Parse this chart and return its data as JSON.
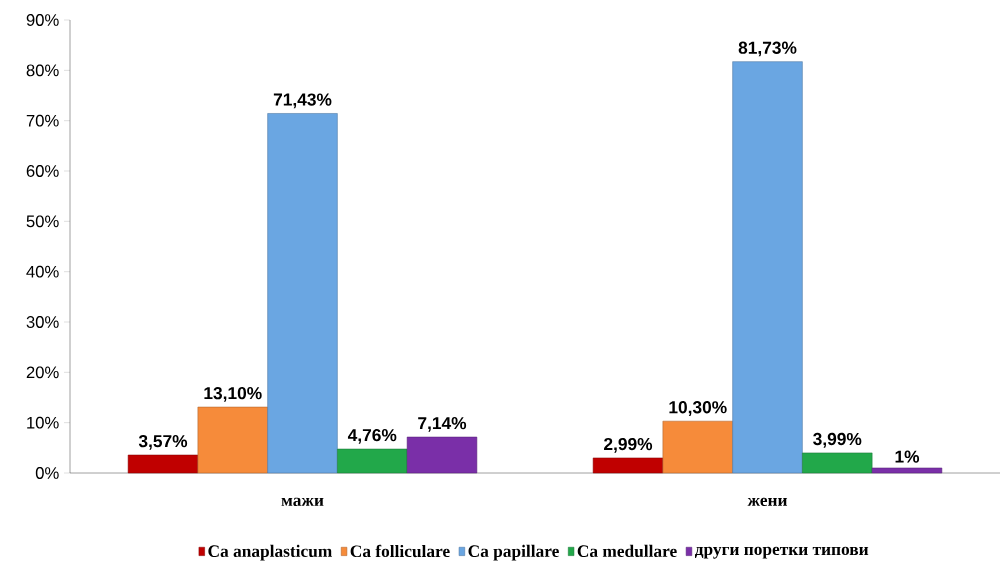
{
  "chart_data": {
    "type": "bar",
    "categories": [
      "мажи",
      "жени"
    ],
    "series": [
      {
        "name": "Ca anaplasticum",
        "color": "#c00000",
        "values": [
          3.57,
          2.99
        ],
        "value_labels": [
          "3,57%",
          "2,99%"
        ]
      },
      {
        "name": "Ca folliculare",
        "color": "#f68b3a",
        "values": [
          13.1,
          10.3
        ],
        "value_labels": [
          "13,10%",
          "10,30%"
        ]
      },
      {
        "name": "Ca papillare",
        "color": "#6aa6e2",
        "values": [
          71.43,
          81.73
        ],
        "value_labels": [
          "71,43%",
          "81,73%"
        ]
      },
      {
        "name": "Ca medullare",
        "color": "#22a84a",
        "values": [
          4.76,
          3.99
        ],
        "value_labels": [
          "4,76%",
          "3,99%"
        ]
      },
      {
        "name": "други поретки типови",
        "color": "#7a2fa8",
        "values": [
          7.14,
          1
        ],
        "value_labels": [
          "7,14%",
          "1%"
        ]
      }
    ],
    "ylim": [
      0,
      90
    ],
    "yticks": [
      {
        "value": 0,
        "label": "0%"
      },
      {
        "value": 10,
        "label": "10%"
      },
      {
        "value": 20,
        "label": "20%"
      },
      {
        "value": 30,
        "label": "30%"
      },
      {
        "value": 40,
        "label": "40%"
      },
      {
        "value": 50,
        "label": "50%"
      },
      {
        "value": 60,
        "label": "60%"
      },
      {
        "value": 70,
        "label": "70%"
      },
      {
        "value": 80,
        "label": "80%"
      },
      {
        "value": 90,
        "label": "90%"
      }
    ],
    "legend": "bottom"
  }
}
